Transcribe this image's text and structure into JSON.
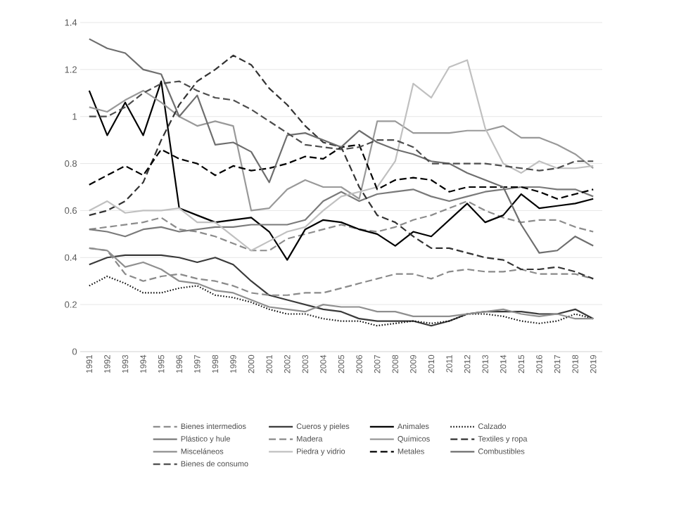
{
  "chart_data": {
    "type": "line",
    "categories": [
      "1991",
      "1992",
      "1993",
      "1994",
      "1995",
      "1996",
      "1997",
      "1998",
      "1999",
      "2000",
      "2001",
      "2002",
      "2003",
      "2004",
      "2005",
      "2006",
      "2007",
      "2008",
      "2009",
      "2010",
      "2011",
      "2012",
      "2013",
      "2014",
      "2015",
      "2016",
      "2017",
      "2018",
      "2019"
    ],
    "ylim": [
      0,
      1.4
    ],
    "yticks": [
      0,
      {
        "value": 0.2,
        "label": "0.2"
      },
      {
        "value": 0.4,
        "label": "0.4"
      },
      {
        "value": 0.6,
        "label": "0.6"
      },
      {
        "value": 0.8,
        "label": "0.8"
      },
      1,
      {
        "value": 1.2,
        "label": "1.2"
      },
      {
        "value": 1.4,
        "label": "1.4"
      }
    ],
    "grid": "y",
    "legend": "bottom",
    "series": [
      {
        "name": "Bienes intermedios",
        "color": "#8c8c8c",
        "line_style": "dashed",
        "values": [
          0.52,
          0.53,
          0.54,
          0.55,
          0.57,
          0.52,
          0.51,
          0.49,
          0.46,
          0.43,
          0.43,
          0.48,
          0.5,
          0.52,
          0.54,
          0.52,
          0.51,
          0.53,
          0.56,
          0.58,
          0.61,
          0.64,
          0.6,
          0.57,
          0.55,
          0.56,
          0.56,
          0.53,
          0.51
        ]
      },
      {
        "name": "Cueros y pieles",
        "color": "#3a3a3a",
        "line_style": "solid",
        "values": [
          0.37,
          0.4,
          0.41,
          0.41,
          0.41,
          0.4,
          0.38,
          0.4,
          0.37,
          0.3,
          0.24,
          0.22,
          0.2,
          0.18,
          0.17,
          0.14,
          0.13,
          0.13,
          0.13,
          0.11,
          0.13,
          0.16,
          0.17,
          0.17,
          0.17,
          0.16,
          0.16,
          0.18,
          0.14
        ]
      },
      {
        "name": "Animales",
        "color": "#000000",
        "line_style": "solid",
        "values": [
          1.11,
          0.92,
          1.06,
          0.92,
          1.15,
          0.61,
          0.58,
          0.55,
          0.56,
          0.57,
          0.51,
          0.39,
          0.52,
          0.56,
          0.55,
          0.52,
          0.5,
          0.45,
          0.51,
          0.49,
          0.56,
          0.63,
          0.55,
          0.58,
          0.67,
          0.61,
          0.62,
          0.63,
          0.65
        ]
      },
      {
        "name": "Calzado",
        "color": "#111111",
        "line_style": "dotted",
        "values": [
          0.28,
          0.32,
          0.29,
          0.25,
          0.25,
          0.27,
          0.28,
          0.24,
          0.23,
          0.21,
          0.18,
          0.16,
          0.16,
          0.14,
          0.13,
          0.13,
          0.11,
          0.12,
          0.13,
          0.12,
          0.13,
          0.16,
          0.16,
          0.15,
          0.13,
          0.12,
          0.13,
          0.16,
          0.14
        ]
      },
      {
        "name": "Plástico y hule",
        "color": "#7a7a7a",
        "line_style": "solid",
        "values": [
          0.52,
          0.51,
          0.49,
          0.52,
          0.53,
          0.51,
          0.52,
          0.53,
          0.53,
          0.54,
          0.54,
          0.54,
          0.56,
          0.64,
          0.68,
          0.64,
          0.67,
          0.68,
          0.69,
          0.66,
          0.64,
          0.66,
          0.68,
          0.69,
          0.7,
          0.7,
          0.69,
          0.69,
          0.66
        ]
      },
      {
        "name": "Madera",
        "color": "#8a8a8a",
        "line_style": "dashed",
        "values": [
          0.44,
          0.43,
          0.33,
          0.3,
          0.32,
          0.33,
          0.31,
          0.3,
          0.28,
          0.25,
          0.24,
          0.24,
          0.25,
          0.25,
          0.27,
          0.29,
          0.31,
          0.33,
          0.33,
          0.31,
          0.34,
          0.35,
          0.34,
          0.34,
          0.35,
          0.33,
          0.33,
          0.33,
          0.31
        ]
      },
      {
        "name": "Químicos",
        "color": "#999999",
        "line_style": "solid",
        "values": [
          1.04,
          1.02,
          1.07,
          1.11,
          1.06,
          1.0,
          0.96,
          0.98,
          0.96,
          0.6,
          0.61,
          0.69,
          0.73,
          0.7,
          0.7,
          0.65,
          0.98,
          0.98,
          0.93,
          0.93,
          0.93,
          0.94,
          0.94,
          0.96,
          0.91,
          0.91,
          0.88,
          0.84,
          0.78
        ]
      },
      {
        "name": "Textiles y ropa",
        "color": "#333333",
        "line_style": "dashed",
        "values": [
          0.58,
          0.6,
          0.64,
          0.72,
          0.9,
          1.05,
          1.15,
          1.2,
          1.26,
          1.22,
          1.12,
          1.05,
          0.96,
          0.89,
          0.87,
          0.7,
          0.58,
          0.55,
          0.49,
          0.44,
          0.44,
          0.42,
          0.4,
          0.39,
          0.35,
          0.35,
          0.36,
          0.34,
          0.31
        ]
      },
      {
        "name": "Misceláneos",
        "color": "#8f8f8f",
        "line_style": "solid",
        "values": [
          0.44,
          0.43,
          0.36,
          0.38,
          0.35,
          0.3,
          0.29,
          0.26,
          0.25,
          0.22,
          0.19,
          0.18,
          0.17,
          0.2,
          0.19,
          0.19,
          0.17,
          0.17,
          0.15,
          0.15,
          0.15,
          0.16,
          0.17,
          0.18,
          0.16,
          0.15,
          0.16,
          0.14,
          0.14
        ]
      },
      {
        "name": "Piedra y vidrio",
        "color": "#c0c0c0",
        "line_style": "solid",
        "values": [
          0.6,
          0.64,
          0.59,
          0.6,
          0.6,
          0.61,
          0.55,
          0.55,
          0.49,
          0.43,
          0.47,
          0.51,
          0.53,
          0.6,
          0.66,
          0.68,
          0.7,
          0.81,
          1.14,
          1.08,
          1.21,
          1.24,
          0.95,
          0.8,
          0.76,
          0.81,
          0.78,
          0.78,
          0.79
        ]
      },
      {
        "name": "Metales",
        "color": "#000000",
        "line_style": "dashed",
        "values": [
          0.71,
          0.75,
          0.79,
          0.75,
          0.86,
          0.82,
          0.8,
          0.75,
          0.79,
          0.77,
          0.78,
          0.8,
          0.83,
          0.82,
          0.87,
          0.88,
          0.69,
          0.73,
          0.74,
          0.73,
          0.68,
          0.7,
          0.7,
          0.7,
          0.7,
          0.68,
          0.65,
          0.67,
          0.69
        ]
      },
      {
        "name": "Combustibles",
        "color": "#6e6e6e",
        "line_style": "solid",
        "values": [
          1.33,
          1.29,
          1.27,
          1.2,
          1.18,
          1.0,
          1.09,
          0.88,
          0.89,
          0.85,
          0.72,
          0.92,
          0.93,
          0.9,
          0.87,
          0.94,
          0.89,
          0.86,
          0.84,
          0.81,
          0.8,
          0.76,
          0.73,
          0.7,
          0.54,
          0.42,
          0.43,
          0.49,
          0.45
        ]
      },
      {
        "name": "Bienes de consumo",
        "color": "#4d4d4d",
        "line_style": "dashed",
        "values": [
          1.0,
          1.0,
          1.04,
          1.1,
          1.14,
          1.15,
          1.11,
          1.08,
          1.07,
          1.03,
          0.98,
          0.93,
          0.88,
          0.87,
          0.86,
          0.87,
          0.9,
          0.9,
          0.87,
          0.8,
          0.8,
          0.8,
          0.8,
          0.79,
          0.78,
          0.77,
          0.78,
          0.81,
          0.81
        ]
      }
    ]
  }
}
